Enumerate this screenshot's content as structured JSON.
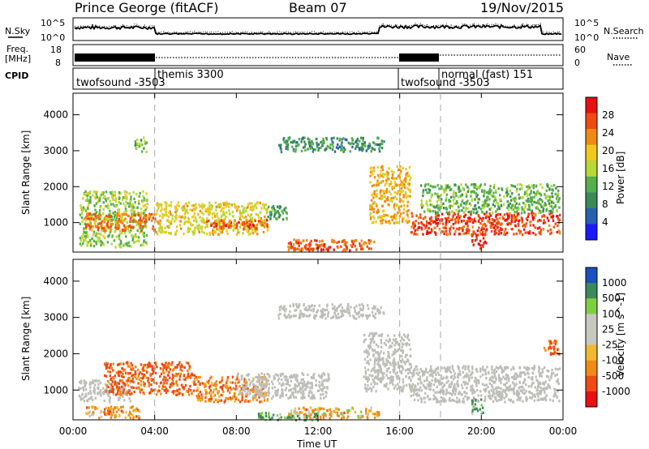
{
  "header": {
    "station": "Prince George (fitACF)",
    "beam": "Beam 07",
    "date": "19/Nov/2015"
  },
  "left_labels": {
    "nsky": "N.Sky",
    "freq": "Freq.",
    "freq_unit": "[MHz]",
    "cpid": "CPID"
  },
  "right_labels": {
    "nsearch": "N.Search",
    "nave": "Nave"
  },
  "noise_axis": {
    "left_ticks": [
      "10^5",
      "10^0"
    ],
    "right_ticks": [
      "10^5",
      "10^0"
    ]
  },
  "freq_axis": {
    "left_ticks": [
      "18",
      "8"
    ],
    "right_ticks": [
      "60",
      "0"
    ]
  },
  "cpid_modes": [
    {
      "label": "twofsound -3503",
      "start_hour": 0
    },
    {
      "label": "themis 3300",
      "start_hour": 4
    },
    {
      "label": "twofsound -3503",
      "start_hour": 16
    },
    {
      "label": "normal (fast) 151",
      "start_hour": 18
    }
  ],
  "colors": {
    "power_scale": [
      "#1a1aff",
      "#2860b0",
      "#3c8a5a",
      "#54b04a",
      "#b8d838",
      "#f2c81a",
      "#f08a14",
      "#f04a10",
      "#e81010"
    ],
    "velocity_scale": [
      "#e81010",
      "#f04a10",
      "#f08a14",
      "#f2b830",
      "#c8c8c0",
      "#c8c8c0",
      "#7cd040",
      "#3c8a5a",
      "#1a50c0"
    ],
    "ground_scatter": "#bebeb8"
  },
  "chart_data": [
    {
      "type": "heatmap",
      "title": "Power",
      "ylabel": "Slant Range [km]",
      "xlabel": "Time UT",
      "x_range_hours": [
        0,
        24
      ],
      "xticks": [
        "00:00",
        "04:00",
        "08:00",
        "12:00",
        "16:00",
        "20:00",
        "00:00"
      ],
      "ylim": [
        180,
        4600
      ],
      "yticks": [
        1000,
        2000,
        3000,
        4000
      ],
      "colorbar": {
        "label": "Power [dB]",
        "ticks": [
          "4",
          "8",
          "12",
          "16",
          "20",
          "24",
          "28"
        ],
        "range": [
          0,
          30
        ]
      },
      "series": [
        {
          "name": "bands",
          "values": [
            {
              "t0": 0.3,
              "t1": 3.6,
              "r0": 350,
              "r1": 1900,
              "level": 14
            },
            {
              "t0": 0.5,
              "t1": 4.0,
              "r0": 800,
              "r1": 1300,
              "level": 24
            },
            {
              "t0": 4.0,
              "t1": 9.5,
              "r0": 700,
              "r1": 1600,
              "level": 18
            },
            {
              "t0": 6.5,
              "t1": 9.5,
              "r0": 850,
              "r1": 1100,
              "level": 26
            },
            {
              "t0": 9.5,
              "t1": 10.5,
              "r0": 1100,
              "r1": 1500,
              "level": 10
            },
            {
              "t0": 10.5,
              "t1": 14.8,
              "r0": 250,
              "r1": 560,
              "level": 25
            },
            {
              "t0": 11.3,
              "t1": 12.5,
              "r0": 250,
              "r1": 420,
              "level": 29
            },
            {
              "t0": 14.5,
              "t1": 16.5,
              "r0": 1000,
              "r1": 2600,
              "level": 20
            },
            {
              "t0": 16.5,
              "t1": 23.8,
              "r0": 700,
              "r1": 1300,
              "level": 27
            },
            {
              "t0": 19.5,
              "t1": 20.2,
              "r0": 300,
              "r1": 700,
              "level": 29
            },
            {
              "t0": 17.0,
              "t1": 23.8,
              "r0": 1300,
              "r1": 2100,
              "level": 12
            },
            {
              "t0": 10.0,
              "t1": 15.2,
              "r0": 3000,
              "r1": 3400,
              "level": 8
            },
            {
              "t0": 3.0,
              "t1": 3.6,
              "r0": 3000,
              "r1": 3400,
              "level": 12
            }
          ]
        }
      ]
    },
    {
      "type": "heatmap",
      "title": "Velocity",
      "ylabel": "Slant Range [km]",
      "xlabel": "Time UT",
      "x_range_hours": [
        0,
        24
      ],
      "xticks": [
        "00:00",
        "04:00",
        "08:00",
        "12:00",
        "16:00",
        "20:00",
        "00:00"
      ],
      "ylim": [
        180,
        4600
      ],
      "yticks": [
        1000,
        2000,
        3000,
        4000
      ],
      "colorbar": {
        "label": "Velocity [m s^-1]",
        "ticks": [
          "1000",
          "500",
          "100",
          "25",
          "-25",
          "-100",
          "-500",
          "-1000"
        ],
        "range": [
          -1000,
          1000
        ]
      },
      "series": [
        {
          "name": "bands",
          "values": [
            {
              "t0": 0.2,
              "t1": 2.8,
              "r0": 700,
              "r1": 1300,
              "vel": 0,
              "gs": true
            },
            {
              "t0": 0.6,
              "t1": 3.2,
              "r0": 250,
              "r1": 600,
              "vel": -150
            },
            {
              "t0": 1.5,
              "t1": 6.0,
              "r0": 900,
              "r1": 1800,
              "vel": -300
            },
            {
              "t0": 6.0,
              "t1": 9.5,
              "r0": 700,
              "r1": 1400,
              "vel": -200
            },
            {
              "t0": 8.0,
              "t1": 12.5,
              "r0": 800,
              "r1": 1500,
              "vel": 0,
              "gs": true
            },
            {
              "t0": 10.5,
              "t1": 15.0,
              "r0": 250,
              "r1": 550,
              "vel": -120
            },
            {
              "t0": 9.0,
              "t1": 12.0,
              "r0": 200,
              "r1": 400,
              "vel": 150
            },
            {
              "t0": 14.2,
              "t1": 16.5,
              "r0": 1000,
              "r1": 2600,
              "vel": 0,
              "gs": true
            },
            {
              "t0": 16.5,
              "t1": 23.8,
              "r0": 700,
              "r1": 1700,
              "vel": 0,
              "gs": true
            },
            {
              "t0": 19.5,
              "t1": 20.1,
              "r0": 350,
              "r1": 800,
              "vel": 150
            },
            {
              "t0": 10.0,
              "t1": 15.2,
              "r0": 3000,
              "r1": 3400,
              "vel": 0,
              "gs": true
            },
            {
              "t0": 23.0,
              "t1": 23.8,
              "r0": 2000,
              "r1": 2400,
              "vel": -300
            }
          ]
        }
      ]
    }
  ]
}
